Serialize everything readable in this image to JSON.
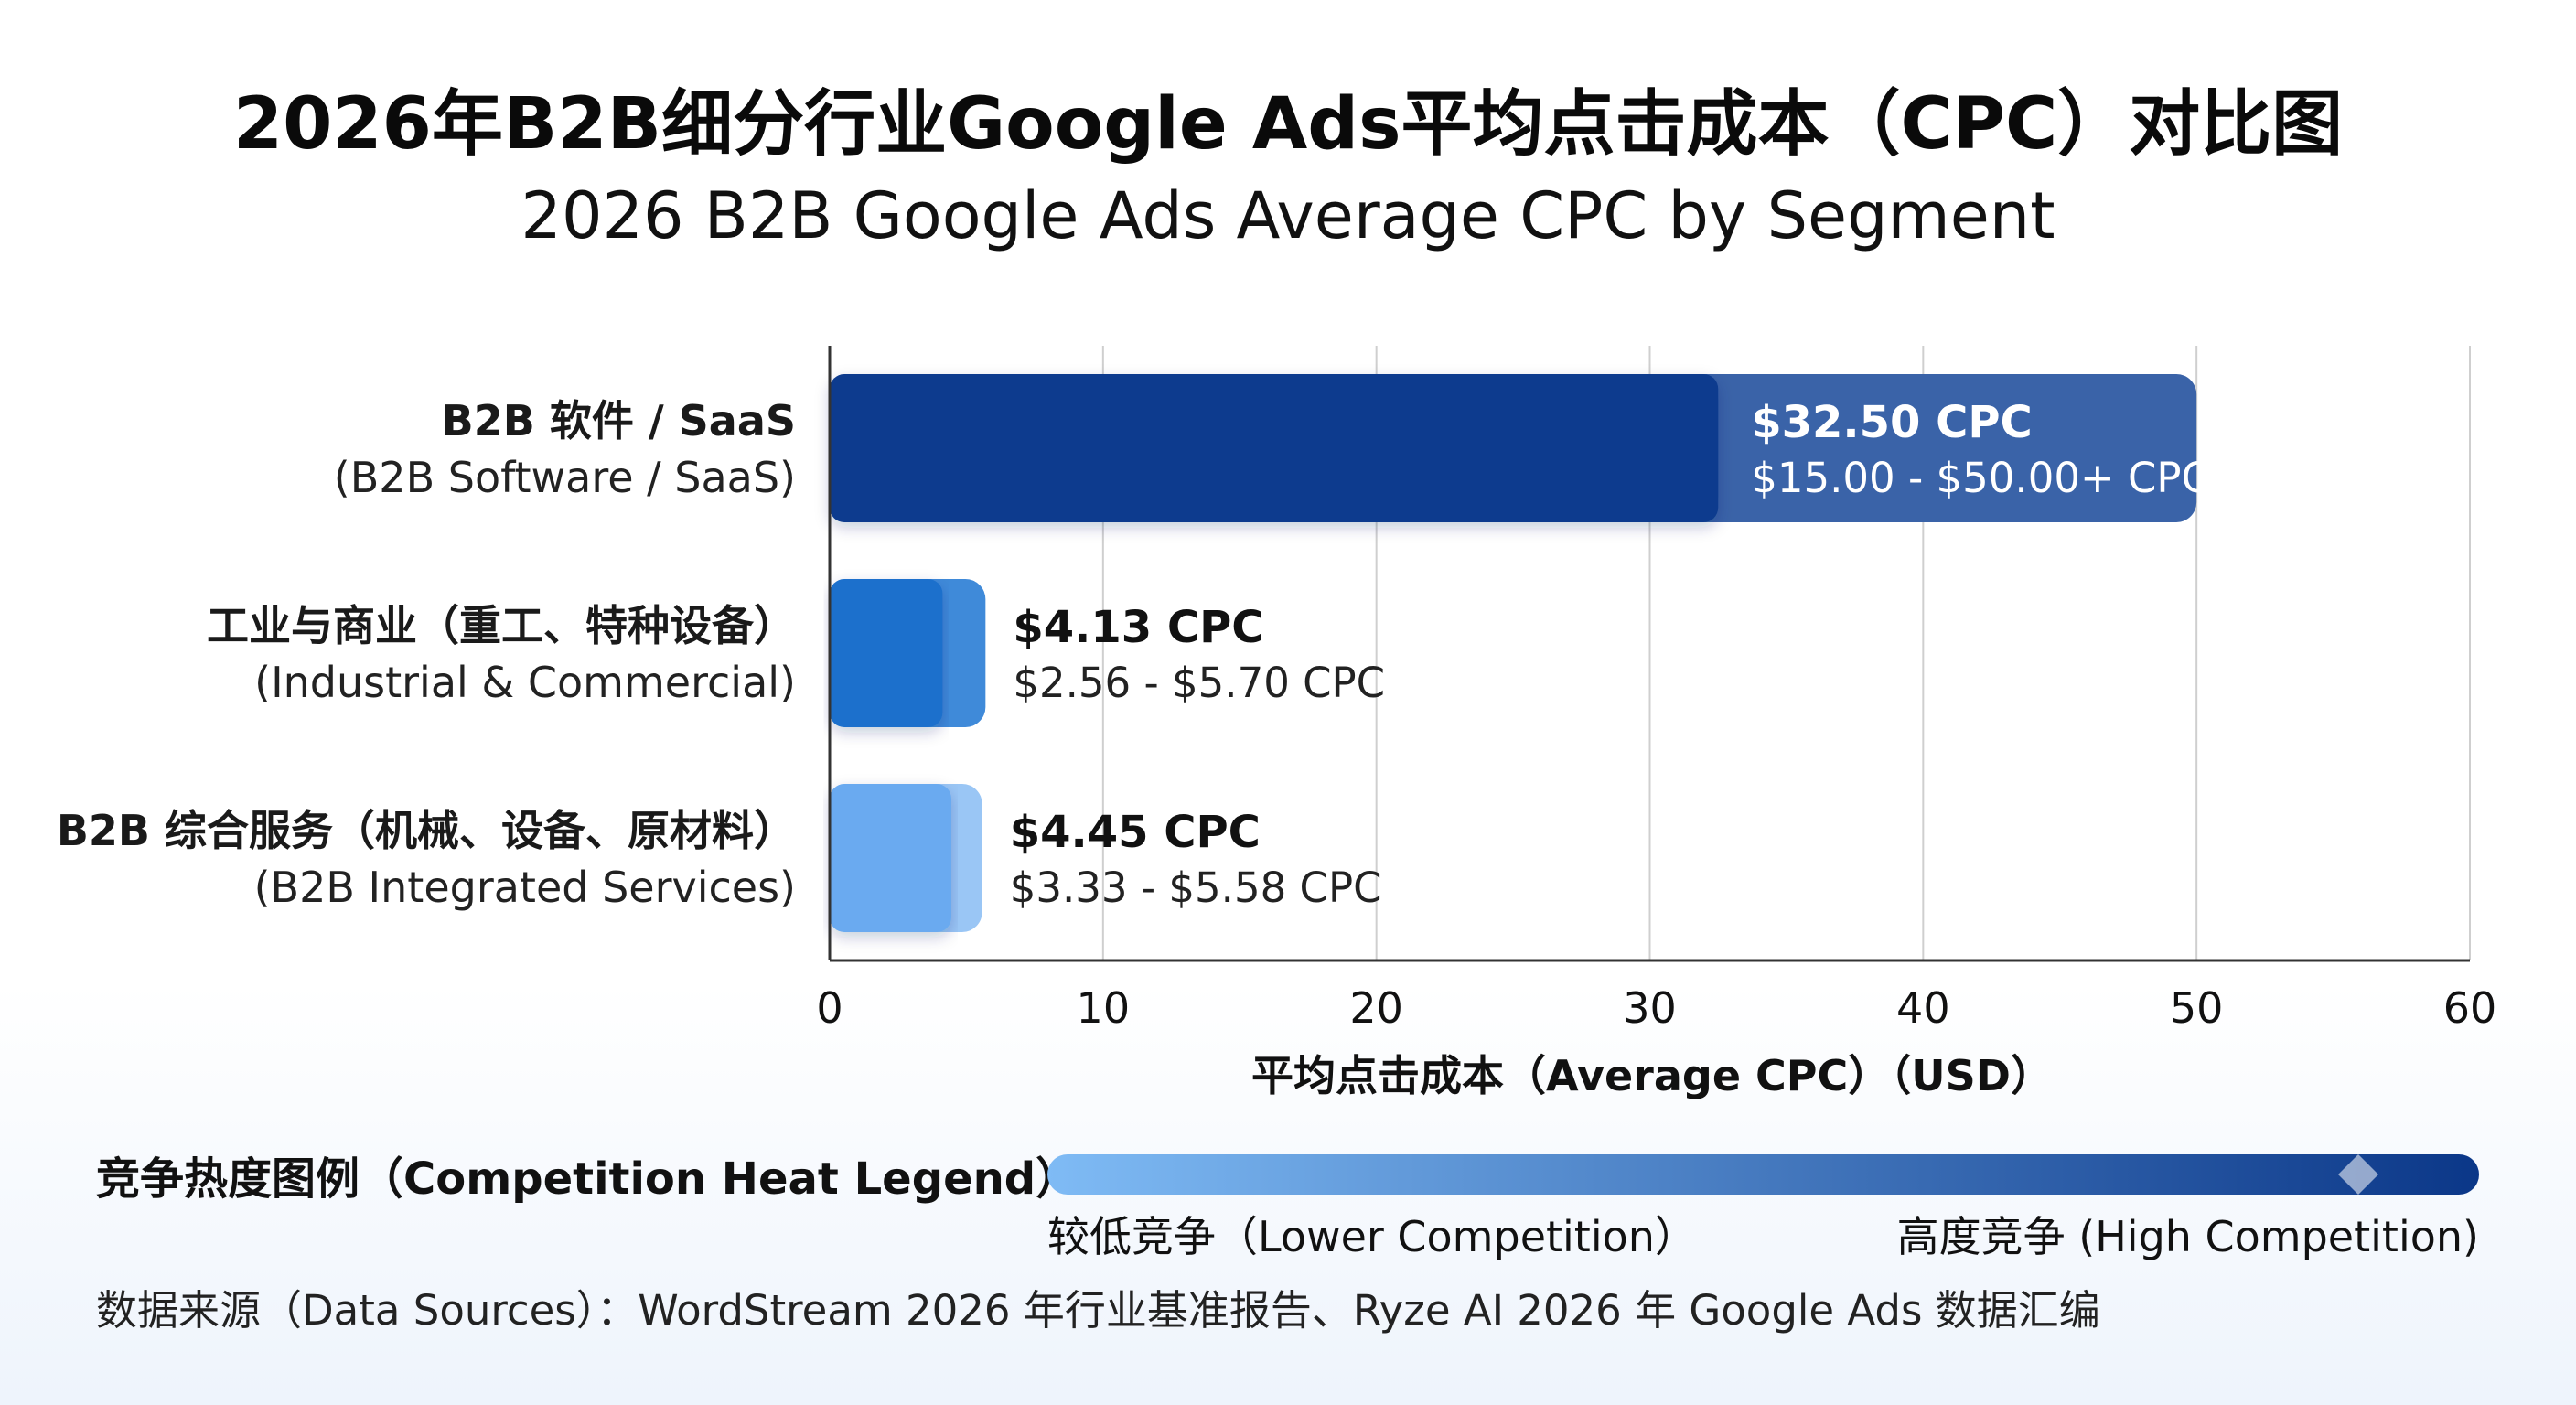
{
  "colors": {
    "bar_dark": "#0d3b8e",
    "bar_dark_range": "#3a63a8",
    "bar_mid": "#1e6fcc",
    "bar_mid_range": "#3f8ad9",
    "bar_light": "#6aaaf0",
    "bar_light_range": "#9ac6f5",
    "grid": "#cfcfcf",
    "axis": "#333333",
    "legend_low": "#7fbbf5",
    "legend_high": "#0b3788"
  },
  "chart_data": {
    "type": "bar",
    "orientation": "horizontal",
    "title": "2026年B2B细分行业Google Ads平均点击成本（CPC）对比图",
    "subtitle": "2026 B2B Google Ads Average CPC by Segment",
    "xlabel": "平均点击成本（Average CPC）（USD）",
    "xlim": [
      0,
      60
    ],
    "xticks": [
      0,
      10,
      20,
      30,
      40,
      50,
      60
    ],
    "grid": true,
    "categories": [
      {
        "label": "B2B 软件 / SaaS",
        "sublabel": "(B2B Software / SaaS)",
        "value": 32.5,
        "range": [
          15.0,
          50.0
        ],
        "value_label": "$32.50 CPC",
        "range_label": "$15.00 - $50.00+ CPC",
        "color": "#0d3b8e",
        "range_color": "#3a63a8"
      },
      {
        "label": "工业与商业（重工、特种设备）",
        "sublabel": "(Industrial & Commercial)",
        "value": 4.13,
        "range": [
          2.56,
          5.7
        ],
        "value_label": "$4.13 CPC",
        "range_label": "$2.56 - $5.70 CPC",
        "color": "#1e6fcc",
        "range_color": "#3f8ad9"
      },
      {
        "label": "B2B 综合服务（机械、设备、原材料）",
        "sublabel": "(B2B Integrated Services)",
        "value": 4.45,
        "range": [
          3.33,
          5.58
        ],
        "value_label": "$4.45 CPC",
        "range_label": "$3.33 - $5.58 CPC",
        "color": "#6aaaf0",
        "range_color": "#9ac6f5"
      }
    ]
  },
  "legend": {
    "title": "竞争热度图例（Competition Heat Legend）",
    "low_label": "较低竞争（Lower Competition）",
    "high_label": "高度竞争 (High Competition)"
  },
  "source": "数据来源（Data Sources）：WordStream 2026 年行业基准报告、Ryze AI 2026 年 Google Ads 数据汇编"
}
